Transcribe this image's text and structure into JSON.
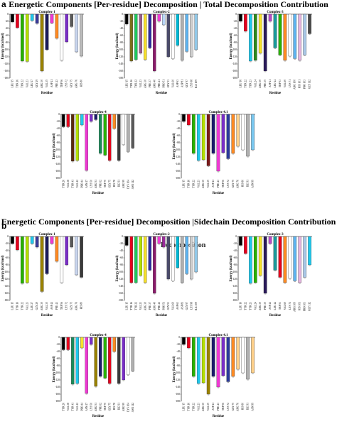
{
  "panels": [
    {
      "letter": "a",
      "title": "Energetic Components [Per-residue] Decomposition | Total Decomposition Contribution"
    },
    {
      "letter": "b",
      "title": "Energetic Components [Per-residue] Decomposition |Sidechain Decomposition Contribution"
    }
  ],
  "overlay_text": "Decomposition",
  "axis": {
    "ylabel": "Energy (kcal/mol)",
    "xlabel": "Residue",
    "yticks": [
      0,
      -20,
      -40,
      -60,
      -80,
      -100,
      -120,
      -140,
      -160,
      -180
    ]
  },
  "chart_data": [
    {
      "type": "bar",
      "panel": "a",
      "title": "Complex-1",
      "ylim": [
        -180,
        0
      ],
      "xlabel": "Residue",
      "ylabel": "Energy (kcal/mol)",
      "categories": [
        "LEU 15",
        "TYR 16",
        "TYR 22",
        "VAL 23",
        "LEU 27",
        "GLY 29",
        "ARG 30",
        "VAL 35",
        "ASP 41",
        "PHE 43",
        "TRP 56",
        "LYS 72",
        "GLY 75",
        "ARG 76",
        "HIS 80"
      ],
      "values": [
        -22,
        -38,
        -132,
        -133,
        -18,
        -26,
        -160,
        -100,
        -25,
        -68,
        -130,
        -78,
        -35,
        -106,
        -118
      ],
      "colors": [
        "#000000",
        "#e6001c",
        "#27b200",
        "#b4e000",
        "#1ec8ec",
        "#3a3a9a",
        "#9a8200",
        "#1a1a5a",
        "#ef39d3",
        "#ff8a22",
        "#ffffff",
        "#7a2dc8",
        "#5a5a5a",
        "#cad7f0",
        "#bdbdbd"
      ]
    },
    {
      "type": "bar",
      "panel": "a",
      "title": "Complex-2",
      "ylim": [
        -180,
        0
      ],
      "xlabel": "Residue",
      "ylabel": "Energy (kcal/mol)",
      "categories": [
        "LEU 15",
        "TYR 16",
        "TYR 22",
        "VAL 23",
        "ARG 30",
        "PHE 37",
        "ARG 40",
        "PHE 41",
        "PRO 51",
        "GLY 53",
        "VAL 60",
        "ASP 63",
        "ASP 81",
        "GLY 97",
        "LYS 98",
        "ILE 109"
      ],
      "values": [
        -28,
        -132,
        -128,
        -110,
        -128,
        -95,
        -160,
        -20,
        -30,
        -120,
        -125,
        -88,
        -130,
        -105,
        -120,
        -100
      ],
      "colors": [
        "#000000",
        "#7a6e1a",
        "#1ec85c",
        "#9a5a8a",
        "#f7e12a",
        "#2a2aa0",
        "#8a1a6a",
        "#ef39d3",
        "#b9d6f6",
        "#4a4a6a",
        "#ffffff",
        "#00b8d4",
        "#b0b0b0",
        "#5eb4f0",
        "#d0d0d0",
        "#90c8e8"
      ]
    },
    {
      "type": "bar",
      "panel": "a",
      "title": "Complex-3",
      "ylim": [
        -180,
        0
      ],
      "xlabel": "Residue",
      "ylabel": "Energy (kcal/mol)",
      "categories": [
        "LEU 16",
        "TYR 22",
        "TYR 23",
        "VAL 24",
        "ARG 30",
        "PHE 35",
        "ASP 41",
        "LEU 44",
        "TRP 53",
        "VAL 60",
        "LYS 71",
        "ARG 100",
        "HIS 101",
        "PRO 103",
        "GLY 112"
      ],
      "values": [
        -20,
        -48,
        -132,
        -130,
        -110,
        -160,
        -20,
        -95,
        -115,
        -130,
        -118,
        -125,
        -130,
        -115,
        -55
      ],
      "colors": [
        "#000000",
        "#e6001c",
        "#1ec8ec",
        "#2a8a1a",
        "#f7e12a",
        "#2a1a5a",
        "#b84ac8",
        "#1a9a9a",
        "#27b200",
        "#ff8a22",
        "#ffffff",
        "#5eb4f0",
        "#e6b4e0",
        "#aac8e8",
        "#4a4a4a"
      ]
    },
    {
      "type": "bar",
      "panel": "a",
      "title": "Complex-4",
      "ylim": [
        -180,
        0
      ],
      "xlabel": "Residue",
      "ylabel": "Energy (kcal/mol)",
      "categories": [
        "TYR 26",
        "VAL 38",
        "TYR 41",
        "VAL 42",
        "PRO 44",
        "ASN 47",
        "LYS 50",
        "ARG 51",
        "PHE 62",
        "TRP 70",
        "GLY 75",
        "HIS 78",
        "ILE 91",
        "ARG 99",
        "LYS 104",
        "ASN 112"
      ],
      "values": [
        -35,
        -35,
        -132,
        -130,
        -30,
        -158,
        -20,
        -15,
        -110,
        -115,
        -130,
        -40,
        -130,
        -85,
        -105,
        -95
      ],
      "colors": [
        "#000000",
        "#e6001c",
        "#5a2a0a",
        "#b4e000",
        "#1ec8ec",
        "#ef39d3",
        "#7a2dc8",
        "#1a1a6a",
        "#1a8a5a",
        "#27b200",
        "#e6001c",
        "#ff8a22",
        "#3a3a3a",
        "#ffffff",
        "#b0b0b0",
        "#5a5a5a"
      ]
    },
    {
      "type": "bar",
      "panel": "a",
      "title": "Complex-4.1",
      "ylim": [
        -180,
        0
      ],
      "xlabel": "Residue",
      "ylabel": "Energy (kcal/mol)",
      "categories": [
        "LEU 15",
        "TYR 16",
        "TYR 22",
        "VAL 23",
        "ARG 30",
        "VAL 35",
        "ASP 41",
        "PHE 43",
        "TRP 56",
        "LYS 72",
        "GLY 75",
        "ARG 76",
        "HIS 80",
        "ILE 91",
        "ASN 99"
      ],
      "values": [
        -20,
        -30,
        -110,
        -130,
        -128,
        -145,
        -110,
        -160,
        -108,
        -125,
        -110,
        -90,
        -100,
        -118,
        -100
      ],
      "colors": [
        "#000000",
        "#e6001c",
        "#27b200",
        "#1ec8ec",
        "#b4e000",
        "#7a1a1a",
        "#1a1a6a",
        "#ef39d3",
        "#7a2dc8",
        "#2a3a9a",
        "#ff8a22",
        "#ffd08a",
        "#ffffff",
        "#b0b0b0",
        "#7ac8f0"
      ]
    },
    {
      "type": "bar",
      "panel": "b",
      "title": "Complex-1",
      "ylim": [
        -180,
        0
      ],
      "xlabel": "Residue",
      "ylabel": "Energy (kcal/mol)",
      "categories": [
        "LEU 15",
        "TYR 16",
        "TYR 22",
        "VAL 23",
        "LEU 27",
        "GLY 29",
        "ARG 30",
        "VAL 35",
        "ASP 41",
        "PHE 43",
        "TRP 56",
        "LYS 72",
        "GLY 75",
        "ARG 76",
        "HIS 80"
      ],
      "values": [
        -20,
        -38,
        -132,
        -130,
        -20,
        -30,
        -155,
        -105,
        -20,
        -70,
        -130,
        -80,
        -30,
        -108,
        -115
      ],
      "colors": [
        "#000000",
        "#e6001c",
        "#27b200",
        "#b4e000",
        "#1ec8ec",
        "#3a3a9a",
        "#9a8200",
        "#1a1a5a",
        "#ef39d3",
        "#ff8a22",
        "#ffffff",
        "#7a2dc8",
        "#5a5a5a",
        "#cad7f0",
        "#3a3a3a"
      ]
    },
    {
      "type": "bar",
      "panel": "b",
      "title": "Complex-2",
      "ylim": [
        -180,
        0
      ],
      "xlabel": "Residue",
      "ylabel": "Energy (kcal/mol)",
      "categories": [
        "LEU 15",
        "TYR 16",
        "TYR 22",
        "VAL 23",
        "ARG 30",
        "PHE 37",
        "ARG 40",
        "PHE 41",
        "PRO 51",
        "GLY 53",
        "VAL 60",
        "ASP 63",
        "ASP 81",
        "GLY 97",
        "LYS 98",
        "ILE 109"
      ],
      "values": [
        -25,
        -130,
        -130,
        -110,
        -130,
        -95,
        -160,
        -20,
        -30,
        -120,
        -125,
        -88,
        -130,
        -105,
        -120,
        -100
      ],
      "colors": [
        "#000000",
        "#e6001c",
        "#1ec85c",
        "#b4e000",
        "#f7e12a",
        "#2a2aa0",
        "#8a1a6a",
        "#ef39d3",
        "#9a2a9a",
        "#4a4a6a",
        "#ffffff",
        "#00b8d4",
        "#b0b0b0",
        "#5eb4f0",
        "#d0d0d0",
        "#90c8e8"
      ]
    },
    {
      "type": "bar",
      "panel": "b",
      "title": "Complex-3",
      "ylim": [
        -180,
        0
      ],
      "xlabel": "Residue",
      "ylabel": "Energy (kcal/mol)",
      "categories": [
        "LEU 16",
        "TYR 22",
        "TYR 23",
        "VAL 24",
        "ARG 30",
        "PHE 35",
        "ASP 41",
        "LEU 44",
        "TRP 53",
        "VAL 60",
        "LYS 71",
        "ARG 100",
        "HIS 101",
        "PRO 103",
        "GLY 112"
      ],
      "values": [
        -25,
        -48,
        -132,
        -130,
        -110,
        -160,
        -20,
        -95,
        -115,
        -130,
        -118,
        -125,
        -130,
        -115,
        -80
      ],
      "colors": [
        "#000000",
        "#e6001c",
        "#1ec8ec",
        "#27b200",
        "#f7e12a",
        "#2a1a5a",
        "#b84ac8",
        "#1a9a9a",
        "#e6001c",
        "#ff8a22",
        "#ffffff",
        "#5eb4f0",
        "#e6b4e0",
        "#aac8e8",
        "#1ec8ec"
      ]
    },
    {
      "type": "bar",
      "panel": "b",
      "title": "Complex-4",
      "ylim": [
        -180,
        0
      ],
      "xlabel": "Residue",
      "ylabel": "Energy (kcal/mol)",
      "categories": [
        "TYR 26",
        "VAL 38",
        "TYR 41",
        "VAL 42",
        "PRO 44",
        "ASN 47",
        "LYS 50",
        "ARG 51",
        "PHE 62",
        "TRP 70",
        "GLY 75",
        "HIS 78",
        "ILE 91",
        "ARG 99",
        "LYS 104",
        "ASN 112"
      ],
      "values": [
        -35,
        -35,
        -132,
        -130,
        -30,
        -158,
        -20,
        -138,
        -110,
        -115,
        -130,
        -40,
        -130,
        -120,
        -105,
        -95
      ],
      "colors": [
        "#000000",
        "#e6001c",
        "#1a8a5a",
        "#1ec8ec",
        "#f7e12a",
        "#ef39d3",
        "#7a2dc8",
        "#9a8200",
        "#1a1a6a",
        "#27b200",
        "#e6001c",
        "#ff8a22",
        "#3a3a3a",
        "#7a2dc8",
        "#ffffff",
        "#b0b0b0"
      ]
    },
    {
      "type": "bar",
      "panel": "b",
      "title": "Complex-4.1",
      "ylim": [
        -180,
        0
      ],
      "xlabel": "Residue",
      "ylabel": "Energy (kcal/mol)",
      "categories": [
        "LEU 15",
        "TYR 16",
        "TYR 22",
        "VAL 23",
        "ARG 30",
        "VAL 35",
        "ASP 41",
        "PHE 43",
        "TRP 56",
        "LYS 72",
        "GLY 75",
        "ARG 76",
        "HIS 80",
        "ILE 91",
        "ASN 99"
      ],
      "values": [
        -20,
        -30,
        -110,
        -130,
        -128,
        -160,
        -110,
        -140,
        -108,
        -125,
        -110,
        -90,
        -100,
        -118,
        -100
      ],
      "colors": [
        "#000000",
        "#e6001c",
        "#27b200",
        "#1ec8ec",
        "#b4e000",
        "#9a8200",
        "#1a1a6a",
        "#ef39d3",
        "#7a2dc8",
        "#2a3a9a",
        "#ff8a22",
        "#ffd08a",
        "#ffffff",
        "#b0b0b0",
        "#ffd08a"
      ]
    }
  ]
}
